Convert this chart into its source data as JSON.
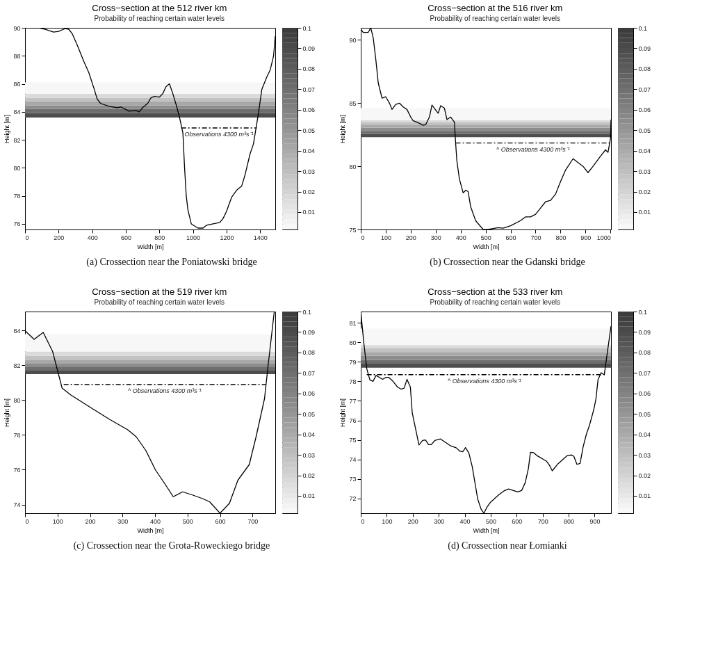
{
  "chart_data": [
    {
      "type": "line",
      "title": "Cross−section at the 512 river km",
      "subtitle": "Probability of reaching certain water levels",
      "xlabel": "Width [m]",
      "ylabel": "Height [m]",
      "xlim": [
        0,
        1490
      ],
      "xticks": [
        0,
        200,
        400,
        600,
        800,
        1000,
        1200,
        1400
      ],
      "ylim": [
        75.6,
        90
      ],
      "yticks": [
        76,
        78,
        80,
        82,
        84,
        86,
        88,
        90
      ],
      "grid": false,
      "clim": [
        0.0015,
        0.1
      ],
      "cticks": [
        0.01,
        0.02,
        0.03,
        0.04,
        0.05,
        0.06,
        0.07,
        0.08,
        0.09,
        0.1
      ],
      "series": [
        {
          "color": "#000000",
          "x": [
            0,
            80,
            120,
            170,
            200,
            240,
            260,
            280,
            310,
            350,
            380,
            410,
            430,
            450,
            500,
            550,
            570,
            620,
            660,
            680,
            700,
            730,
            750,
            770,
            800,
            820,
            840,
            860,
            880,
            900,
            920,
            940,
            950,
            960,
            970,
            990,
            1030,
            1060,
            1080,
            1120,
            1160,
            1180,
            1200,
            1230,
            1260,
            1290,
            1310,
            1340,
            1360,
            1390,
            1410,
            1440,
            1460,
            1480,
            1490
          ],
          "values": [
            90,
            90,
            89.9,
            89.7,
            89.75,
            89.95,
            89.9,
            89.6,
            88.8,
            87.6,
            86.8,
            85.7,
            84.9,
            84.6,
            84.4,
            84.3,
            84.35,
            84.05,
            84.1,
            84.0,
            84.3,
            84.6,
            85.0,
            85.1,
            85.05,
            85.3,
            85.8,
            86.0,
            85.3,
            84.5,
            83.6,
            82.5,
            80.0,
            78.0,
            77.0,
            76.0,
            75.7,
            75.7,
            75.9,
            76.0,
            76.1,
            76.4,
            76.9,
            77.9,
            78.4,
            78.7,
            79.5,
            81.0,
            81.7,
            83.9,
            85.6,
            86.5,
            87.0,
            88.0,
            89.4
          ]
        },
        {
          "name": "Observations 4300 m³s⁻¹",
          "color": "#000000",
          "line_style": "dashed",
          "x": [
            930,
            1380
          ],
          "values": [
            82.85,
            82.85
          ]
        }
      ],
      "bands": [
        {
          "axis": "y",
          "from": 83.6,
          "to": 83.9,
          "color": "#4d4d4d"
        },
        {
          "axis": "y",
          "from": 83.9,
          "to": 84.2,
          "color": "#6e6e6e"
        },
        {
          "axis": "y",
          "from": 84.2,
          "to": 84.45,
          "color": "#8c8c8c"
        },
        {
          "axis": "y",
          "from": 84.45,
          "to": 84.75,
          "color": "#a8a8a8"
        },
        {
          "axis": "y",
          "from": 84.75,
          "to": 85.0,
          "color": "#c2c2c2"
        },
        {
          "axis": "y",
          "from": 85.0,
          "to": 85.3,
          "color": "#dadada"
        },
        {
          "axis": "y",
          "from": 85.3,
          "to": 86.1,
          "color": "#f7f7f7"
        }
      ],
      "annotations": [
        "(a) Crossection near the Poniatowski bridge"
      ]
    },
    {
      "type": "line",
      "title": "Cross−section at the 516 river km",
      "subtitle": "Probability of reaching certain water levels",
      "xlabel": "Width [m]",
      "ylabel": "Height [m]",
      "xlim": [
        0,
        1002
      ],
      "xticks": [
        0,
        100,
        200,
        300,
        400,
        500,
        600,
        700,
        800,
        900,
        1000
      ],
      "ylim": [
        75,
        90.96
      ],
      "yticks": [
        75,
        80,
        85,
        90
      ],
      "grid": false,
      "clim": [
        0.0015,
        0.1
      ],
      "cticks": [
        0.01,
        0.02,
        0.03,
        0.04,
        0.05,
        0.06,
        0.07,
        0.08,
        0.09,
        0.1
      ],
      "series": [
        {
          "color": "#000000",
          "x": [
            0,
            10,
            30,
            40,
            50,
            60,
            70,
            85,
            100,
            115,
            125,
            140,
            155,
            170,
            185,
            200,
            210,
            225,
            250,
            260,
            275,
            285,
            310,
            320,
            335,
            345,
            360,
            375,
            380,
            385,
            395,
            410,
            420,
            430,
            440,
            460,
            490,
            510,
            550,
            570,
            600,
            640,
            660,
            680,
            700,
            720,
            740,
            760,
            780,
            800,
            820,
            850,
            870,
            890,
            910,
            930,
            960,
            980,
            990,
            1000,
            1002
          ],
          "values": [
            90.85,
            90.6,
            90.6,
            90.95,
            90.15,
            88.5,
            86.6,
            85.4,
            85.5,
            85.0,
            84.5,
            84.9,
            85.0,
            84.7,
            84.5,
            83.9,
            83.6,
            83.5,
            83.25,
            83.3,
            83.9,
            84.85,
            84.2,
            84.8,
            84.6,
            83.7,
            83.9,
            83.5,
            81.8,
            80.4,
            79.0,
            77.9,
            78.1,
            78.0,
            76.8,
            75.7,
            75.0,
            75.0,
            75.15,
            75.1,
            75.3,
            75.7,
            76.0,
            76.0,
            76.2,
            76.7,
            77.2,
            77.3,
            77.8,
            78.8,
            79.7,
            80.6,
            80.3,
            80.0,
            79.5,
            80.0,
            80.8,
            81.3,
            81.1,
            82.2,
            83.7
          ]
        },
        {
          "name": "^ Observations 4300 m³s⁻¹",
          "color": "#000000",
          "line_style": "dashed",
          "x": [
            380,
            1000
          ],
          "values": [
            81.85,
            81.85
          ]
        }
      ],
      "bands": [
        {
          "axis": "y",
          "from": 82.3,
          "to": 82.55,
          "color": "#4d4d4d"
        },
        {
          "axis": "y",
          "from": 82.55,
          "to": 82.8,
          "color": "#6e6e6e"
        },
        {
          "axis": "y",
          "from": 82.8,
          "to": 83.05,
          "color": "#8c8c8c"
        },
        {
          "axis": "y",
          "from": 83.05,
          "to": 83.3,
          "color": "#a8a8a8"
        },
        {
          "axis": "y",
          "from": 83.3,
          "to": 83.5,
          "color": "#c2c2c2"
        },
        {
          "axis": "y",
          "from": 83.5,
          "to": 83.65,
          "color": "#dadada"
        },
        {
          "axis": "y",
          "from": 83.65,
          "to": 84.6,
          "color": "#f7f7f7"
        }
      ],
      "annotations": [
        "(b) Crossection near the Gdanski bridge"
      ]
    },
    {
      "type": "line",
      "title": "Cross−section at the 519 river km",
      "subtitle": "Probability of reaching certain water levels",
      "xlabel": "Width [m]",
      "ylabel": "Height [m]",
      "xlim": [
        0,
        770
      ],
      "xticks": [
        0,
        100,
        200,
        300,
        400,
        500,
        600,
        700
      ],
      "ylim": [
        73.5,
        85.1
      ],
      "yticks": [
        74,
        76,
        78,
        80,
        82,
        84
      ],
      "grid": false,
      "clim": [
        0.0015,
        0.1
      ],
      "cticks": [
        0.01,
        0.02,
        0.03,
        0.04,
        0.05,
        0.06,
        0.07,
        0.08,
        0.09,
        0.1
      ],
      "series": [
        {
          "color": "#000000",
          "x": [
            0,
            28,
            56,
            85,
            103,
            114,
            141,
            200,
            260,
            316,
            342,
            372,
            401,
            430,
            456,
            485,
            515,
            545,
            568,
            600,
            629,
            655,
            690,
            711,
            737,
            748,
            767
          ],
          "values": [
            84.0,
            83.5,
            83.9,
            82.8,
            81.5,
            80.7,
            80.3,
            79.6,
            78.9,
            78.3,
            77.9,
            77.1,
            76.0,
            75.2,
            74.45,
            74.73,
            74.55,
            74.35,
            74.16,
            73.5,
            74.07,
            75.4,
            76.3,
            77.9,
            80.1,
            82.0,
            85.1
          ]
        },
        {
          "name": "^ Observations 4300 m³s⁻¹",
          "color": "#000000",
          "line_style": "dashed",
          "x": [
            119,
            740
          ],
          "values": [
            80.9,
            80.9
          ]
        }
      ],
      "bands": [
        {
          "axis": "y",
          "from": 81.5,
          "to": 81.7,
          "color": "#4d4d4d"
        },
        {
          "axis": "y",
          "from": 81.7,
          "to": 81.9,
          "color": "#6e6e6e"
        },
        {
          "axis": "y",
          "from": 81.9,
          "to": 82.1,
          "color": "#8c8c8c"
        },
        {
          "axis": "y",
          "from": 82.1,
          "to": 82.3,
          "color": "#a8a8a8"
        },
        {
          "axis": "y",
          "from": 82.3,
          "to": 82.55,
          "color": "#c2c2c2"
        },
        {
          "axis": "y",
          "from": 82.55,
          "to": 82.8,
          "color": "#dadada"
        },
        {
          "axis": "y",
          "from": 82.8,
          "to": 83.8,
          "color": "#f7f7f7"
        }
      ],
      "annotations": [
        "(c) Crossection near the Grota-Roweckiego bridge"
      ]
    },
    {
      "type": "line",
      "title": "Cross−section at the 533 river km",
      "subtitle": "Probability of reaching certain water levels",
      "xlabel": "Width [m]",
      "ylabel": "Height [m]",
      "xlim": [
        0,
        963
      ],
      "xticks": [
        0,
        100,
        200,
        300,
        400,
        500,
        600,
        700,
        800,
        900
      ],
      "ylim": [
        71.25,
        81.57
      ],
      "yticks": [
        72,
        73,
        74,
        75,
        76,
        77,
        78,
        79,
        80,
        81
      ],
      "grid": false,
      "clim": [
        0.0015,
        0.1
      ],
      "cticks": [
        0.01,
        0.02,
        0.03,
        0.04,
        0.05,
        0.06,
        0.07,
        0.08,
        0.09,
        0.1
      ],
      "series": [
        {
          "color": "#000000",
          "x": [
            0,
            12,
            23,
            35,
            47,
            59,
            72,
            84,
            96,
            108,
            124,
            142,
            155,
            167,
            178,
            191,
            198,
            224,
            238,
            249,
            261,
            271,
            285,
            307,
            344,
            367,
            382,
            393,
            403,
            416,
            429,
            450,
            463,
            474,
            486,
            498,
            531,
            551,
            569,
            604,
            619,
            633,
            645,
            653,
            665,
            678,
            714,
            726,
            737,
            759,
            795,
            812,
            820,
            832,
            844,
            856,
            868,
            880,
            897,
            905,
            913,
            925,
            937,
            963
          ],
          "values": [
            81.57,
            79.94,
            78.65,
            78.08,
            78.0,
            78.3,
            78.2,
            78.1,
            78.2,
            78.2,
            78.0,
            77.7,
            77.6,
            77.65,
            78.1,
            77.7,
            76.4,
            74.74,
            74.97,
            75.0,
            74.76,
            74.76,
            74.97,
            75.05,
            74.71,
            74.6,
            74.42,
            74.4,
            74.61,
            74.33,
            73.63,
            71.98,
            71.46,
            71.25,
            71.57,
            71.79,
            72.19,
            72.39,
            72.49,
            72.34,
            72.41,
            72.82,
            73.53,
            74.37,
            74.35,
            74.2,
            73.92,
            73.71,
            73.42,
            73.78,
            74.2,
            74.23,
            74.16,
            73.75,
            73.8,
            74.66,
            75.28,
            75.74,
            76.57,
            77.09,
            78.08,
            78.44,
            78.33,
            80.82
          ]
        },
        {
          "name": "^ Observations 4300 m³s⁻¹",
          "color": "#000000",
          "line_style": "dashed",
          "x": [
            23,
            929
          ],
          "values": [
            78.34,
            78.34
          ]
        }
      ],
      "bands": [
        {
          "axis": "y",
          "from": 78.7,
          "to": 78.9,
          "color": "#4d4d4d"
        },
        {
          "axis": "y",
          "from": 78.9,
          "to": 79.1,
          "color": "#6e6e6e"
        },
        {
          "axis": "y",
          "from": 79.1,
          "to": 79.3,
          "color": "#8c8c8c"
        },
        {
          "axis": "y",
          "from": 79.3,
          "to": 79.5,
          "color": "#a8a8a8"
        },
        {
          "axis": "y",
          "from": 79.5,
          "to": 79.7,
          "color": "#c2c2c2"
        },
        {
          "axis": "y",
          "from": 79.7,
          "to": 79.85,
          "color": "#dadada"
        },
        {
          "axis": "y",
          "from": 79.85,
          "to": 80.7,
          "color": "#f7f7f7"
        }
      ],
      "annotations": [
        "(d) Crossection near Łomianki"
      ]
    }
  ]
}
